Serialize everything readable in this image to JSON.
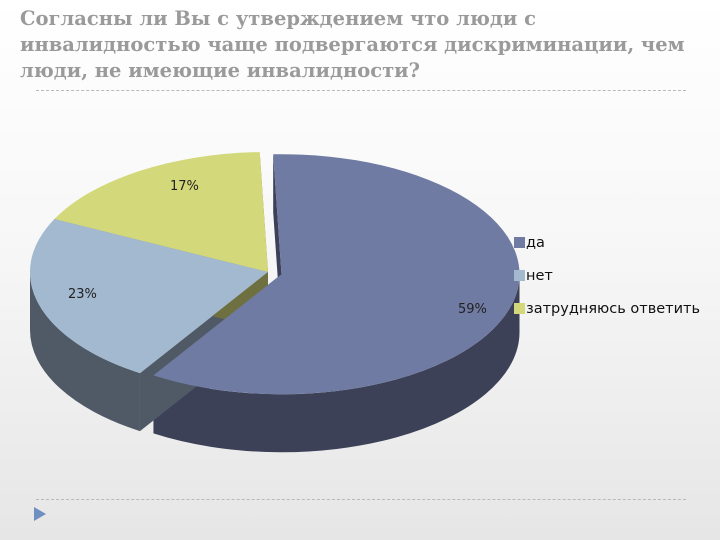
{
  "slide": {
    "title": "Согласны ли Вы с утверждением что люди с инвалидностью чаще подвергаются дискриминации, чем люди, не имеющие инвалидности?"
  },
  "chart_data": {
    "type": "pie",
    "style": "3d",
    "title": "",
    "slices": [
      {
        "label": "да",
        "value": 59,
        "value_label": "59%",
        "top_color": "#6f7ba3",
        "side_color": "#3d4158"
      },
      {
        "label": "нет",
        "value": 23,
        "value_label": "23%",
        "top_color": "#a2b9cf",
        "side_color": "#505a66"
      },
      {
        "label": "затрудняюсь ответить",
        "value": 17,
        "value_label": "17%",
        "top_color": "#d3d97a",
        "side_color": "#6e7040"
      }
    ],
    "legend": {
      "position": "right",
      "entries": [
        "да",
        "нет",
        "затрудняюсь ответить"
      ]
    }
  },
  "nav": {
    "icon": "triangle-right-icon",
    "color": "#6f8fc0"
  }
}
